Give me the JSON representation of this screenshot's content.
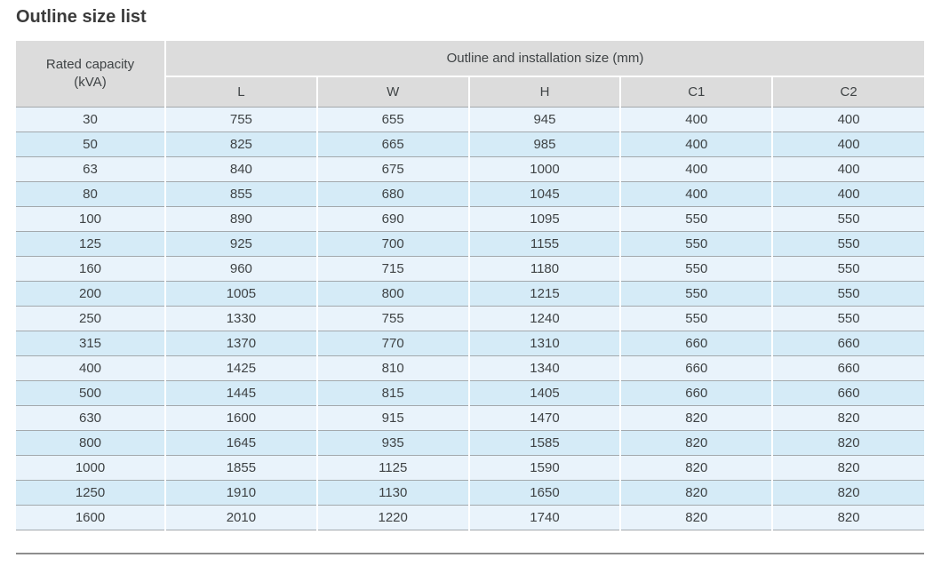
{
  "page": {
    "title": "Outline size list"
  },
  "table": {
    "header": {
      "rated_capacity_line1": "Rated capacity",
      "rated_capacity_line2": "(kVA)",
      "group_label": "Outline and installation size (mm)",
      "columns": [
        "L",
        "W",
        "H",
        "C1",
        "C2"
      ]
    },
    "rows": [
      [
        "30",
        "755",
        "655",
        "945",
        "400",
        "400"
      ],
      [
        "50",
        "825",
        "665",
        "985",
        "400",
        "400"
      ],
      [
        "63",
        "840",
        "675",
        "1000",
        "400",
        "400"
      ],
      [
        "80",
        "855",
        "680",
        "1045",
        "400",
        "400"
      ],
      [
        "100",
        "890",
        "690",
        "1095",
        "550",
        "550"
      ],
      [
        "125",
        "925",
        "700",
        "1155",
        "550",
        "550"
      ],
      [
        "160",
        "960",
        "715",
        "1180",
        "550",
        "550"
      ],
      [
        "200",
        "1005",
        "800",
        "1215",
        "550",
        "550"
      ],
      [
        "250",
        "1330",
        "755",
        "1240",
        "550",
        "550"
      ],
      [
        "315",
        "1370",
        "770",
        "1310",
        "660",
        "660"
      ],
      [
        "400",
        "1425",
        "810",
        "1340",
        "660",
        "660"
      ],
      [
        "500",
        "1445",
        "815",
        "1405",
        "660",
        "660"
      ],
      [
        "630",
        "1600",
        "915",
        "1470",
        "820",
        "820"
      ],
      [
        "800",
        "1645",
        "935",
        "1585",
        "820",
        "820"
      ],
      [
        "1000",
        "1855",
        "1125",
        "1590",
        "820",
        "820"
      ],
      [
        "1250",
        "1910",
        "1130",
        "1650",
        "820",
        "820"
      ],
      [
        "1600",
        "2010",
        "1220",
        "1740",
        "820",
        "820"
      ]
    ]
  },
  "colors": {
    "header_bg": "#dcdcdc",
    "row_light": "#e9f3fb",
    "row_dark": "#d5ebf7",
    "grid_line": "#a3a9ad",
    "text": "#3f4345",
    "title": "#3b3b3b",
    "bottom_rule": "#8e8e8e"
  }
}
